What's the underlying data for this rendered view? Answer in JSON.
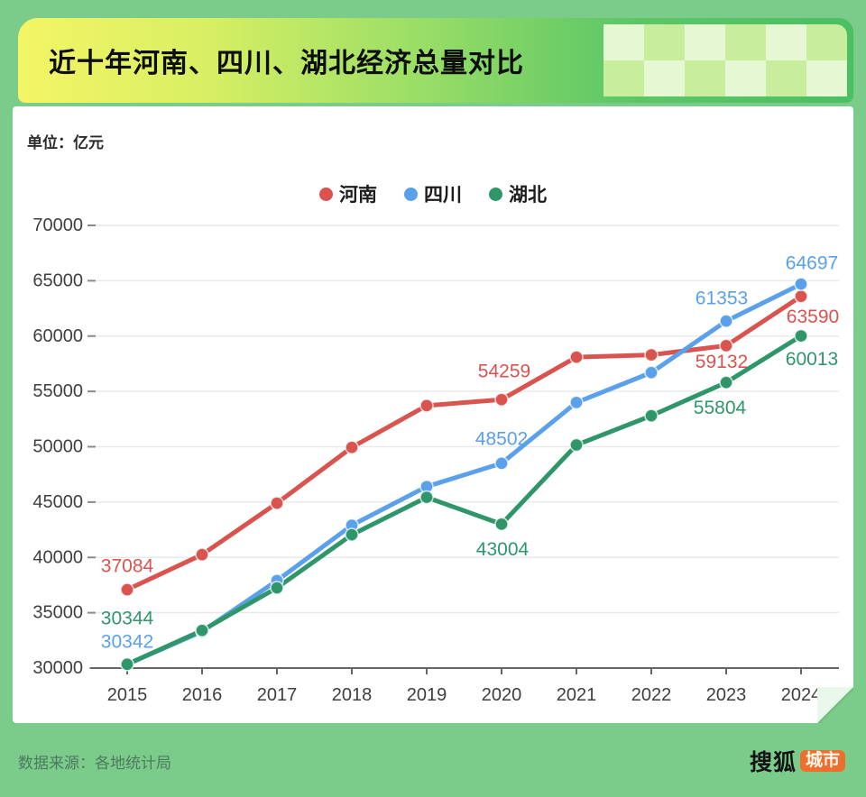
{
  "header": {
    "title": "近十年河南、四川、湖北经济总量对比"
  },
  "chart": {
    "unit_label": "单位：亿元"
  },
  "footer": {
    "source": "数据来源：各地统计局",
    "brand_text": "搜狐",
    "brand_badge": "城市"
  },
  "colors": {
    "page_bg": "#7bcc8a",
    "card_bg": "#ffffff",
    "header_yellow": "#f3f565",
    "header_green": "#4abf63",
    "checker_light": "#e6f7d3",
    "checker_dark": "#c8ed9c",
    "axis_text": "#3f3f3f",
    "gridline": "#e9e9e9",
    "axis_line": "#666666",
    "henan_red": "#d9534f",
    "sichuan_blue": "#5aa0eb",
    "hubei_green": "#2f966a",
    "brand_orange": "#ec6f2d"
  },
  "chart_data": {
    "type": "line",
    "title": "近十年河南、四川、湖北经济总量对比",
    "unit": "亿元",
    "categories": [
      "2015",
      "2016",
      "2017",
      "2018",
      "2019",
      "2020",
      "2021",
      "2022",
      "2023",
      "2024"
    ],
    "series": [
      {
        "name": "河南",
        "color": "#d9534f",
        "values": [
          37084,
          40250,
          44900,
          49940,
          53720,
          54259,
          58100,
          58300,
          59132,
          63590
        ],
        "labeled_indices": [
          0,
          5,
          8,
          9
        ]
      },
      {
        "name": "四川",
        "color": "#5aa0eb",
        "values": [
          30342,
          33300,
          37900,
          42900,
          46400,
          48502,
          54000,
          56700,
          61353,
          64697
        ],
        "labeled_indices": [
          0,
          5,
          8,
          9
        ]
      },
      {
        "name": "湖北",
        "color": "#2f966a",
        "values": [
          30344,
          33400,
          37250,
          42050,
          45430,
          43004,
          50160,
          52800,
          55804,
          60013
        ],
        "labeled_indices": [
          0,
          5,
          8,
          9
        ]
      }
    ],
    "y_axis": {
      "min": 30000,
      "max": 70000,
      "step": 5000
    },
    "x_label": "",
    "y_label": "",
    "grid": true,
    "legend_position": "top"
  }
}
